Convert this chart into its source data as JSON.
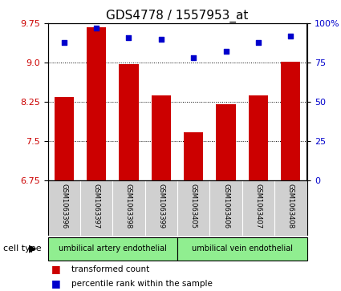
{
  "title": "GDS4778 / 1557953_at",
  "samples": [
    "GSM1063396",
    "GSM1063397",
    "GSM1063398",
    "GSM1063399",
    "GSM1063405",
    "GSM1063406",
    "GSM1063407",
    "GSM1063408"
  ],
  "bar_values": [
    8.35,
    9.67,
    8.97,
    8.37,
    7.67,
    8.2,
    8.38,
    9.02
  ],
  "percentile_values": [
    88,
    97,
    91,
    90,
    78,
    82,
    88,
    92
  ],
  "ylim_left": [
    6.75,
    9.75
  ],
  "ylim_right": [
    0,
    100
  ],
  "yticks_left": [
    6.75,
    7.5,
    8.25,
    9.0,
    9.75
  ],
  "yticks_right": [
    0,
    25,
    50,
    75,
    100
  ],
  "bar_color": "#cc0000",
  "percentile_color": "#0000cc",
  "group1_label": "umbilical artery endothelial",
  "group2_label": "umbilical vein endothelial",
  "cell_type_label": "cell type",
  "legend1": "transformed count",
  "legend2": "percentile rank within the sample",
  "sample_bg_color": "#d0d0d0",
  "plot_bg": "#ffffff",
  "group_bg": "#90ee90",
  "tick_label_color_left": "#cc0000",
  "tick_label_color_right": "#0000cc",
  "title_fontsize": 11,
  "axis_fontsize": 8,
  "sample_fontsize": 6,
  "legend_fontsize": 7.5
}
